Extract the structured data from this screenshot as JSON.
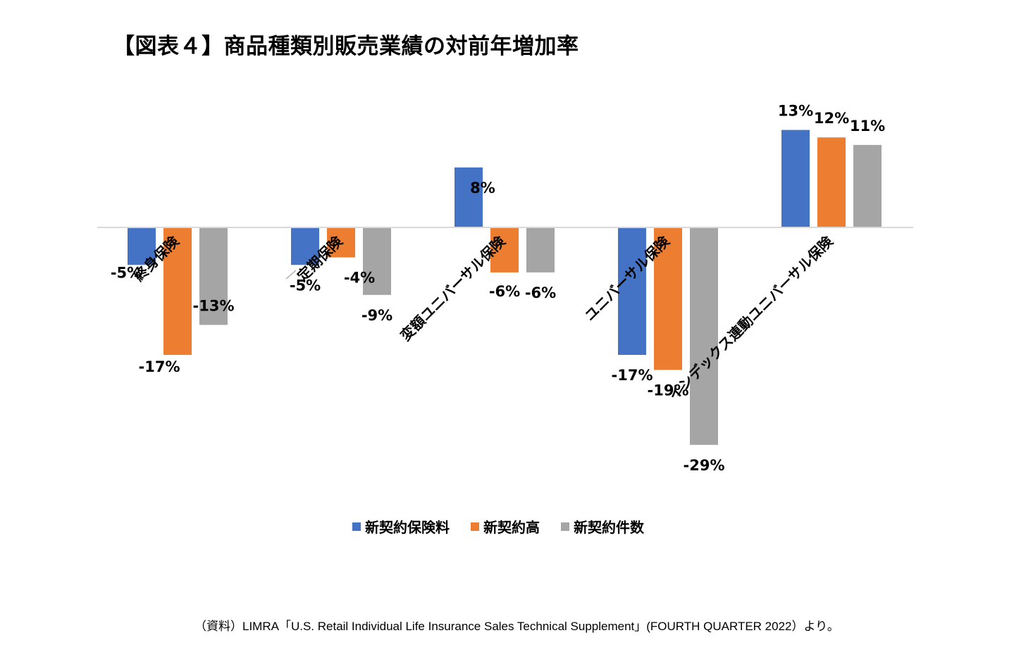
{
  "title": "【図表４】商品種類別販売業績の対前年増加率",
  "source": "（資料）LIMRA「U.S. Retail Individual Life Insurance Sales Technical Supplement」(FOURTH QUARTER 2022）より。",
  "chart_data": {
    "type": "bar",
    "categories": [
      "終身保険",
      "定期保険",
      "変額ユニバーサル保険",
      "ユニバーサル保険",
      "インデックス連動ユニバーサル保険"
    ],
    "series": [
      {
        "name": "新契約保険料",
        "color": "#4472C4",
        "values": [
          -5,
          -5,
          8,
          -17,
          13
        ]
      },
      {
        "name": "新契約高",
        "color": "#ED7D31",
        "values": [
          -17,
          -4,
          -6,
          -19,
          12
        ]
      },
      {
        "name": "新契約件数",
        "color": "#A5A5A5",
        "values": [
          -13,
          -9,
          -6,
          -29,
          11
        ]
      }
    ],
    "value_suffix": "%",
    "legend_position": "bottom",
    "grid": false
  }
}
